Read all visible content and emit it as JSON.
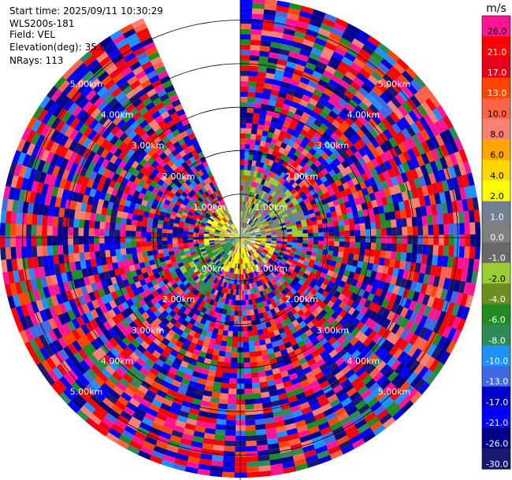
{
  "info": {
    "start_time": "Start time: 2025/09/11 10:30:29",
    "instrument": "WLS200s-181",
    "field": "Field: VEL",
    "elevation": "Elevation(deg): 35.00",
    "nrays": "NRays: 113"
  },
  "chart_data": {
    "type": "heatmap",
    "subtype": "polar-ppi",
    "range_unit": "km",
    "max_range_km": 5.5,
    "range_rings_km": [
      1.0,
      2.0,
      3.0,
      4.0,
      5.0
    ],
    "ring_labels": [
      "1.00km",
      "2.00km",
      "3.00km",
      "4.00km",
      "5.00km"
    ],
    "n_rays": 113,
    "missing_sector_deg": [
      336,
      360
    ],
    "colorbar": {
      "unit": "m/s",
      "ticks": [
        "26.0",
        "21.0",
        "17.0",
        "13.0",
        "10.0",
        "8.0",
        "6.0",
        "4.0",
        "2.0",
        "1.0",
        "0.0",
        "-1.0",
        "-2.0",
        "-4.0",
        "-6.0",
        "-8.0",
        "-10.0",
        "-13.0",
        "-17.0",
        "-21.0",
        "-26.0",
        "-30.0"
      ],
      "colors": [
        "#ff1493",
        "#ff0000",
        "#e8001c",
        "#ff4500",
        "#ff6347",
        "#fa8072",
        "#ffa500",
        "#ffd700",
        "#ffff00",
        "#708090",
        "#808080",
        "#696969",
        "#9acd32",
        "#6b8e23",
        "#228b22",
        "#2e8b57",
        "#1e90ff",
        "#4169e1",
        "#0000cd",
        "#0000ff",
        "#00008b",
        "#191970"
      ]
    },
    "near_field": {
      "description_ranges_km": [
        0,
        1.6
      ],
      "positive_sector_deg": [
        160,
        200
      ],
      "negative_sector_deg": [
        0,
        90
      ],
      "negative2_sector_deg": [
        210,
        260
      ]
    }
  }
}
